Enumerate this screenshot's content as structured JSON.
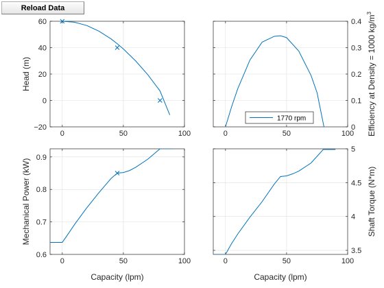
{
  "toolbar": {
    "reload_label": "Reload Data"
  },
  "colors": {
    "line": "#0072BD",
    "grid": "#dfdfdf",
    "axis": "#262626",
    "text": "#262626"
  },
  "chart_data": [
    {
      "id": "head",
      "type": "line",
      "xlabel": "",
      "ylabel": "Head (m)",
      "xlim": [
        -10,
        100
      ],
      "ylim": [
        -20,
        60
      ],
      "xticks": [
        0,
        50,
        100
      ],
      "yticks": [
        -20,
        0,
        20,
        40,
        60
      ],
      "ytick_labels": [
        "−20",
        "0",
        "20",
        "40",
        "60"
      ],
      "y_axis_side": "left",
      "grid": true,
      "series": [
        {
          "x": [
            0,
            10,
            20,
            30,
            40,
            45,
            50,
            60,
            70,
            80,
            88
          ],
          "y": [
            60,
            59.3,
            56.8,
            52.5,
            46.6,
            43.0,
            39.0,
            30.0,
            19.5,
            7.2,
            -11
          ]
        }
      ],
      "markers": {
        "x": [
          0,
          45,
          80
        ],
        "y": [
          60,
          40,
          0
        ]
      }
    },
    {
      "id": "efficiency",
      "type": "line",
      "xlabel": "",
      "ylabel": "Efficiency at Density = 1000 kg/m",
      "ylabel_sup": "3",
      "xlim": [
        -10,
        100
      ],
      "ylim": [
        0,
        0.4
      ],
      "xticks": [
        0,
        50,
        100
      ],
      "yticks": [
        0,
        0.1,
        0.2,
        0.3,
        0.4
      ],
      "ytick_labels": [
        "0",
        "0.1",
        "0.2",
        "0.3",
        "0.4"
      ],
      "y_axis_side": "right",
      "grid": true,
      "legend": {
        "label": "1770 rpm",
        "placement": "bottom-right"
      },
      "series": [
        {
          "name": "1770 rpm",
          "x": [
            0,
            5,
            10,
            20,
            30,
            40,
            45,
            50,
            60,
            70,
            75,
            80.6
          ],
          "y": [
            0,
            0.076,
            0.144,
            0.253,
            0.321,
            0.343,
            0.345,
            0.338,
            0.287,
            0.195,
            0.129,
            0
          ]
        }
      ]
    },
    {
      "id": "power",
      "type": "line",
      "xlabel": "Capacity (lpm)",
      "ylabel": "Mechanical Power (kW)",
      "xlim": [
        -10,
        100
      ],
      "ylim": [
        0.6,
        0.925
      ],
      "xticks": [
        0,
        50,
        100
      ],
      "yticks": [
        0.6,
        0.7,
        0.8,
        0.9
      ],
      "ytick_labels": [
        "0.6",
        "0.7",
        "0.8",
        "0.9"
      ],
      "y_axis_side": "left",
      "grid": true,
      "series": [
        {
          "x": [
            -10,
            0,
            5,
            10,
            20,
            30,
            40,
            45,
            50,
            55,
            60,
            70,
            80,
            90
          ],
          "y": [
            0.637,
            0.637,
            0.664,
            0.692,
            0.743,
            0.79,
            0.834,
            0.85,
            0.852,
            0.858,
            0.868,
            0.893,
            0.925,
            0.925
          ]
        }
      ],
      "markers": {
        "x": [
          45
        ],
        "y": [
          0.85
        ]
      }
    },
    {
      "id": "torque",
      "type": "line",
      "xlabel": "Capacity (lpm)",
      "ylabel": "Shaft Torque (N*m)",
      "xlim": [
        -10,
        100
      ],
      "ylim": [
        3.44,
        5.0
      ],
      "xticks": [
        0,
        50,
        100
      ],
      "yticks": [
        3.5,
        4,
        4.5,
        5
      ],
      "ytick_labels": [
        "3.5",
        "4",
        "4.5",
        "5"
      ],
      "y_axis_side": "right",
      "grid": true,
      "series": [
        {
          "x": [
            -10,
            0,
            5,
            10,
            20,
            30,
            40,
            45,
            50,
            55,
            60,
            70,
            80,
            90
          ],
          "y": [
            3.44,
            3.44,
            3.6,
            3.74,
            3.99,
            4.22,
            4.48,
            4.59,
            4.6,
            4.63,
            4.67,
            4.79,
            4.99,
            4.99
          ]
        }
      ]
    }
  ]
}
